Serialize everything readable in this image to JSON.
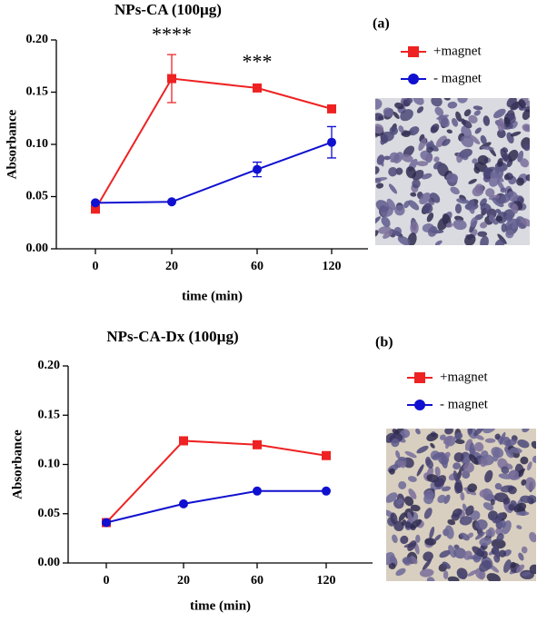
{
  "chart_data": [
    {
      "type": "line",
      "title": "NPs-CA (100µg)",
      "panel": "(a)",
      "xlabel": "time (min)",
      "ylabel": "Absorbance",
      "categories": [
        "0",
        "20",
        "60",
        "120"
      ],
      "ylim": [
        0,
        0.2
      ],
      "yticks": [
        {
          "value": 0,
          "label": "0.00"
        },
        {
          "value": 0.05,
          "label": "0.05"
        },
        {
          "value": 0.1,
          "label": "0.10"
        },
        {
          "value": 0.15,
          "label": "0.15"
        },
        {
          "value": 0.2,
          "label": "0.20"
        }
      ],
      "annotations": [
        "****",
        "***"
      ],
      "series": [
        {
          "name": "+magnet",
          "color": "#ee2222",
          "marker": "square",
          "values": [
            0.038,
            0.163,
            0.154,
            0.134
          ],
          "errors": [
            null,
            0.023,
            null,
            null
          ]
        },
        {
          "name": "- magnet",
          "color": "#1010d0",
          "marker": "circle",
          "values": [
            0.044,
            0.045,
            0.076,
            0.102
          ],
          "errors": [
            null,
            null,
            0.007,
            0.015
          ]
        }
      ]
    },
    {
      "type": "line",
      "title": "NPs-CA-Dx (100µg)",
      "panel": "(b)",
      "xlabel": "time (min)",
      "ylabel": "Absorbance",
      "categories": [
        "0",
        "20",
        "60",
        "120"
      ],
      "ylim": [
        0,
        0.2
      ],
      "yticks": [
        {
          "value": 0,
          "label": "0.00"
        },
        {
          "value": 0.05,
          "label": "0.05"
        },
        {
          "value": 0.1,
          "label": "0.10"
        },
        {
          "value": 0.15,
          "label": "0.15"
        },
        {
          "value": 0.2,
          "label": "0.20"
        }
      ],
      "series": [
        {
          "name": "+magnet",
          "color": "#ee2222",
          "marker": "square",
          "values": [
            0.041,
            0.124,
            0.12,
            0.109
          ],
          "errors": [
            null,
            null,
            null,
            null
          ]
        },
        {
          "name": "- magnet",
          "color": "#1010d0",
          "marker": "circle",
          "values": [
            0.041,
            0.06,
            0.073,
            0.073
          ],
          "errors": [
            null,
            null,
            null,
            null
          ]
        }
      ]
    }
  ]
}
